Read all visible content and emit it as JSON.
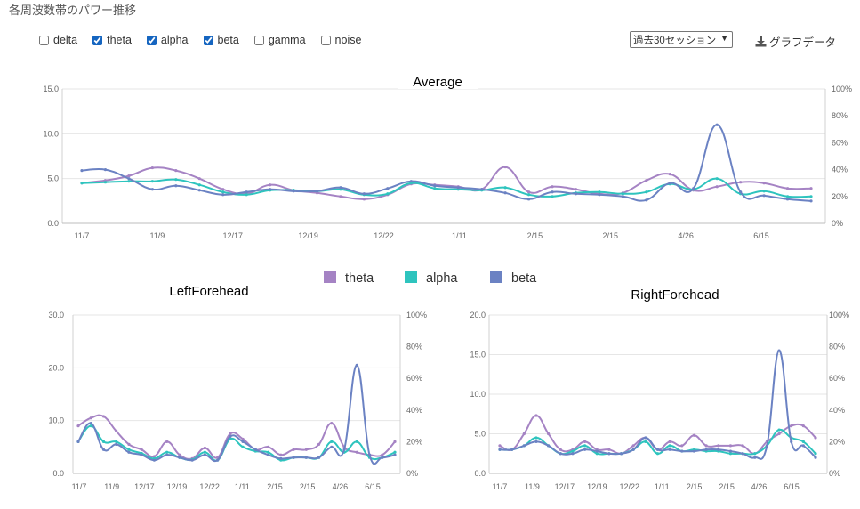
{
  "page": {
    "title": "各周波数帯のパワー推移"
  },
  "filters": {
    "items": [
      {
        "label": "delta",
        "checked": false
      },
      {
        "label": "theta",
        "checked": true
      },
      {
        "label": "alpha",
        "checked": true
      },
      {
        "label": "beta",
        "checked": true
      },
      {
        "label": "gamma",
        "checked": false
      },
      {
        "label": "noise",
        "checked": false
      }
    ]
  },
  "period_select": {
    "value": "過去30セッション"
  },
  "download": {
    "label": "グラフデータ",
    "icon": "download-icon"
  },
  "colors": {
    "theta": "#a583c4",
    "alpha": "#2ec4be",
    "beta": "#6b82c3"
  },
  "chart_data": [
    {
      "type": "line",
      "title": "Average",
      "x_tick_labels": [
        "11/7",
        "11/9",
        "12/17",
        "12/19",
        "12/22",
        "1/11",
        "2/15",
        "2/15",
        "4/26",
        "6/15"
      ],
      "ylim": [
        0,
        15
      ],
      "y_ticks": [
        "0.0",
        "5.0",
        "10.0",
        "15.0"
      ],
      "y2_ticks": [
        "0%",
        "20%",
        "40%",
        "60%",
        "80%",
        "100%"
      ],
      "grid": true,
      "legend": "bottom-center",
      "series": [
        {
          "name": "theta",
          "values": [
            4.5,
            4.8,
            5.3,
            6.2,
            5.9,
            5.0,
            3.8,
            3.3,
            4.3,
            3.7,
            3.4,
            3.0,
            2.7,
            3.2,
            4.4,
            4.3,
            4.1,
            3.8,
            6.3,
            3.5,
            4.1,
            3.8,
            3.3,
            3.4,
            4.8,
            5.5,
            3.7,
            4.1,
            4.6,
            4.5,
            3.9,
            3.9
          ]
        },
        {
          "name": "alpha",
          "values": [
            4.5,
            4.6,
            4.7,
            4.7,
            4.9,
            4.3,
            3.5,
            3.2,
            3.7,
            3.7,
            3.6,
            3.8,
            3.2,
            3.3,
            4.5,
            3.9,
            3.8,
            3.7,
            4.0,
            3.2,
            3.0,
            3.4,
            3.5,
            3.3,
            3.5,
            4.4,
            3.8,
            5.0,
            3.3,
            3.6,
            3.0,
            3.0
          ]
        },
        {
          "name": "beta",
          "values": [
            5.9,
            6.0,
            5.0,
            3.8,
            4.2,
            3.7,
            3.2,
            3.5,
            3.8,
            3.6,
            3.6,
            4.0,
            3.3,
            3.9,
            4.7,
            4.2,
            4.0,
            3.8,
            3.4,
            2.7,
            3.5,
            3.3,
            3.2,
            3.0,
            2.6,
            4.5,
            3.9,
            11.0,
            3.5,
            3.1,
            2.7,
            2.5
          ]
        }
      ]
    },
    {
      "type": "line",
      "title": "LeftForehead",
      "x_tick_labels": [
        "11/7",
        "11/9",
        "12/17",
        "12/19",
        "12/22",
        "1/11",
        "2/15",
        "2/15",
        "4/26",
        "6/15"
      ],
      "ylim": [
        0,
        30
      ],
      "y_ticks": [
        "0.0",
        "10.0",
        "20.0",
        "30.0"
      ],
      "y2_ticks": [
        "0%",
        "20%",
        "40%",
        "60%",
        "80%",
        "100%"
      ],
      "grid": true,
      "series": [
        {
          "name": "theta",
          "values": [
            9,
            10.5,
            10.8,
            8,
            5.5,
            4.5,
            3.2,
            6,
            3.5,
            2.8,
            4.8,
            3,
            7.5,
            6.5,
            4.5,
            5,
            3.5,
            4.5,
            4.5,
            5.5,
            9.5,
            5,
            4,
            3.5,
            3.5,
            6
          ]
        },
        {
          "name": "alpha",
          "values": [
            6,
            9,
            6,
            6,
            4.5,
            3.8,
            2.8,
            4,
            3,
            2.6,
            4,
            2.5,
            6.5,
            5,
            4.2,
            4,
            2.5,
            3,
            3,
            3,
            6,
            4,
            6,
            3,
            3,
            4
          ]
        },
        {
          "name": "beta",
          "values": [
            6,
            9.5,
            4.5,
            5.5,
            4,
            3.5,
            2.5,
            3.5,
            3,
            2.5,
            3.5,
            2.5,
            7,
            6,
            4.5,
            3.5,
            2.8,
            3,
            3,
            3,
            5,
            4.5,
            20.5,
            3.5,
            3,
            3.5
          ]
        }
      ]
    },
    {
      "type": "line",
      "title": "RightForehead",
      "x_tick_labels": [
        "11/7",
        "11/9",
        "12/17",
        "12/19",
        "12/22",
        "1/11",
        "2/15",
        "2/15",
        "4/26",
        "6/15"
      ],
      "ylim": [
        0,
        20
      ],
      "y_ticks": [
        "0.0",
        "5.0",
        "10.0",
        "15.0",
        "20.0"
      ],
      "y2_ticks": [
        "0%",
        "20%",
        "40%",
        "60%",
        "80%",
        "100%"
      ],
      "grid": true,
      "series": [
        {
          "name": "theta",
          "values": [
            3.5,
            3,
            5,
            7.3,
            5,
            3,
            3,
            4,
            3,
            3,
            2.5,
            3.5,
            4.5,
            3,
            4,
            3.5,
            4.8,
            3.5,
            3.5,
            3.5,
            3.5,
            2.5,
            4,
            5,
            6,
            6,
            4.5
          ]
        },
        {
          "name": "alpha",
          "values": [
            3,
            3,
            3.5,
            4.5,
            3.5,
            2.5,
            2.8,
            3.5,
            2.5,
            2.5,
            2.5,
            3,
            4,
            2.5,
            3.5,
            2.8,
            3,
            2.8,
            2.8,
            2.5,
            2.5,
            2.5,
            3.5,
            5.5,
            4.5,
            4,
            2.5
          ]
        },
        {
          "name": "beta",
          "values": [
            3,
            3,
            3.5,
            4,
            3.5,
            2.5,
            2.5,
            3,
            2.8,
            2.5,
            2.5,
            3,
            4.5,
            3,
            3,
            2.8,
            2.8,
            3,
            3,
            2.8,
            2.5,
            2,
            3.5,
            15.5,
            4,
            3.5,
            2
          ]
        }
      ]
    }
  ]
}
